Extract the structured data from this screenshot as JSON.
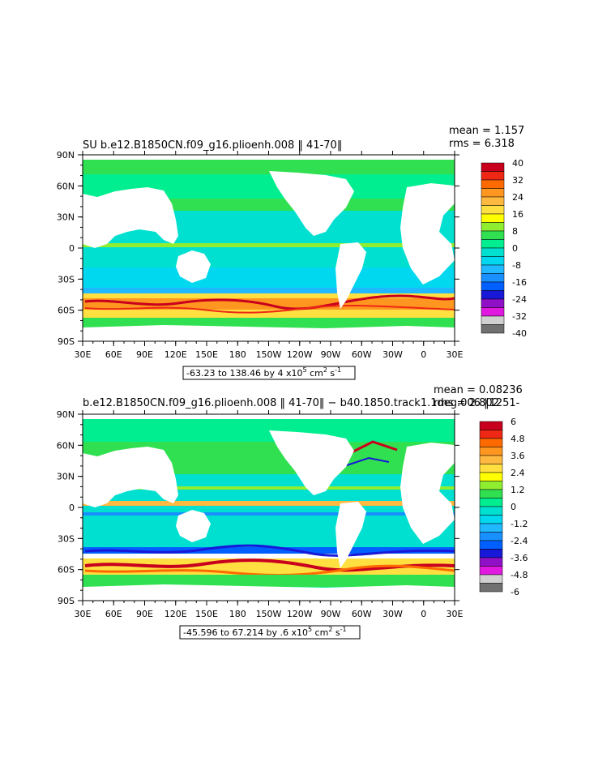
{
  "chart_data": [
    {
      "type": "heatmap",
      "title": "SU b.e12.B1850CN.f09_g16.plioenh.008 ‖ 41-70‖",
      "stats": {
        "mean": "mean = 1.157",
        "rms": "rms = 6.318"
      },
      "range_label": "-63.23 to 138.46 by 4 x10",
      "range_exp": "5",
      "range_unit": " cm",
      "range_unit_exp": "2",
      "range_tail": " s",
      "range_tail_exp": "-1",
      "x_ticks": [
        "30E",
        "60E",
        "90E",
        "120E",
        "150E",
        "180",
        "150W",
        "120W",
        "90W",
        "60W",
        "30W",
        "0",
        "30E"
      ],
      "y_ticks": [
        "90N",
        "60N",
        "30N",
        "0",
        "30S",
        "60S",
        "90S"
      ],
      "colorbar_labels": [
        "40",
        "32",
        "24",
        "16",
        "8",
        "0",
        "-8",
        "-16",
        "-24",
        "-32",
        "-40"
      ],
      "colorbar_colors": [
        "#c8001e",
        "#ee2814",
        "#ff6a00",
        "#ff9620",
        "#ffb840",
        "#ffe040",
        "#ffff00",
        "#90ee30",
        "#30e050",
        "#00ee90",
        "#00e0d0",
        "#00d8f0",
        "#20b8ff",
        "#1890ff",
        "#0060ff",
        "#1818d8",
        "#9010c8",
        "#e018e0",
        "#d0d0d0",
        "#707070"
      ]
    },
    {
      "type": "heatmap",
      "title": "b.e12.B1850CN.f09_g16.plioenh.008 ‖ 41-70‖ − b40.1850.track1.1deg.006 ‖1251-",
      "stats": {
        "mean": "mean = 0.08236",
        "rms": "rms = 2.802"
      },
      "range_label": "-45.596 to 67.214 by .6 x10",
      "range_exp": "5",
      "range_unit": " cm",
      "range_unit_exp": "2",
      "range_tail": " s",
      "range_tail_exp": "-1",
      "x_ticks": [
        "30E",
        "60E",
        "90E",
        "120E",
        "150E",
        "180",
        "150W",
        "120W",
        "90W",
        "60W",
        "30W",
        "0",
        "30E"
      ],
      "y_ticks": [
        "90N",
        "60N",
        "30N",
        "0",
        "30S",
        "60S",
        "90S"
      ],
      "colorbar_labels": [
        "6",
        "4.8",
        "3.6",
        "2.4",
        "1.2",
        "0",
        "-1.2",
        "-2.4",
        "-3.6",
        "-4.8",
        "-6"
      ],
      "colorbar_colors": [
        "#c8001e",
        "#ee2814",
        "#ff6a00",
        "#ff9620",
        "#ffb840",
        "#ffe040",
        "#ffff00",
        "#90ee30",
        "#30e050",
        "#00ee90",
        "#00e0d0",
        "#00d8f0",
        "#20b8ff",
        "#1890ff",
        "#0060ff",
        "#1818d8",
        "#9010c8",
        "#e018e0",
        "#d0d0d0",
        "#707070"
      ]
    }
  ]
}
